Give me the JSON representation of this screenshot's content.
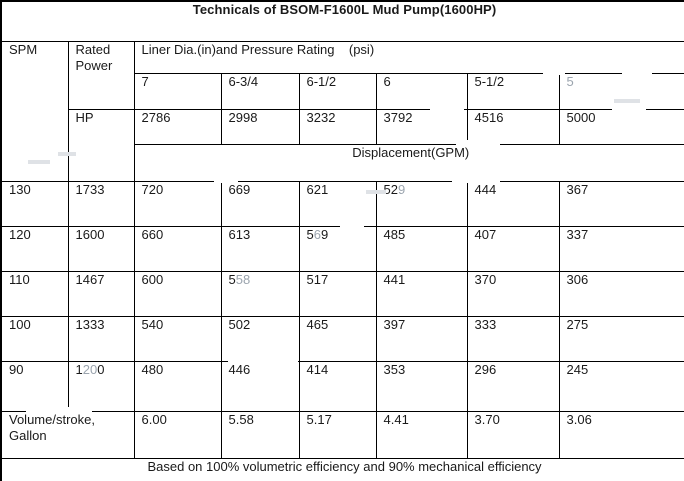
{
  "title": "Technicals of BSOM-F1600L Mud Pump(1600HP)",
  "header": {
    "spm_label": "SPM",
    "rated_power_label": "Rated Power",
    "hp_label": "HP",
    "liner_row_label": "Liner Dia.(in)and Pressure Rating    (psi)",
    "liner_sizes": [
      "7",
      "6-3/4",
      "6-1/2",
      "6",
      "5-1/2",
      "5"
    ],
    "pressure_ratings": [
      "2786",
      "2998",
      "3232",
      "3792",
      "4516",
      "5000"
    ],
    "displacement_label": "Displacement(GPM)"
  },
  "rows": [
    {
      "spm": "130",
      "hp": "1733",
      "values": [
        "720",
        "669",
        "621",
        "529",
        "444",
        "367"
      ]
    },
    {
      "spm": "120",
      "hp": "1600",
      "values": [
        "660",
        "613",
        "569",
        "485",
        "407",
        "337"
      ]
    },
    {
      "spm": "110",
      "hp": "1467",
      "values": [
        "600",
        "558",
        "517",
        "441",
        "370",
        "306"
      ]
    },
    {
      "spm": "100",
      "hp": "1333",
      "values": [
        "540",
        "502",
        "465",
        "397",
        "333",
        "275"
      ]
    },
    {
      "spm": "90",
      "hp": "1200",
      "values": [
        "480",
        "446",
        "414",
        "353",
        "296",
        "245"
      ]
    }
  ],
  "volume_row": {
    "label": "Volume/stroke,\nGallon",
    "values": [
      "6.00",
      "5.58",
      "5.17",
      "4.41",
      "3.70",
      "3.06"
    ]
  },
  "footer": "Based on 100% volumetric efficiency and 90% mechanical efficiency",
  "colors": {
    "border": "#000000",
    "text": "#1a1a1a",
    "watermark_faded_text": "#9ba4ae",
    "background": "#ffffff"
  },
  "watermark_faded": [
    {
      "target": "liner_size",
      "index": 5,
      "pre": "",
      "faded": "5",
      "post": ""
    },
    {
      "target": "cell",
      "row": 0,
      "col": 3,
      "pre": "52",
      "faded": "9",
      "post": ""
    },
    {
      "target": "cell",
      "row": 1,
      "col": 2,
      "pre": "5",
      "faded": "6",
      "post": "9"
    },
    {
      "target": "cell",
      "row": 2,
      "col": 1,
      "pre": "5",
      "faded": "58",
      "post": ""
    },
    {
      "target": "hp",
      "row": 4,
      "pre": "1",
      "faded": "20",
      "post": "0"
    }
  ]
}
